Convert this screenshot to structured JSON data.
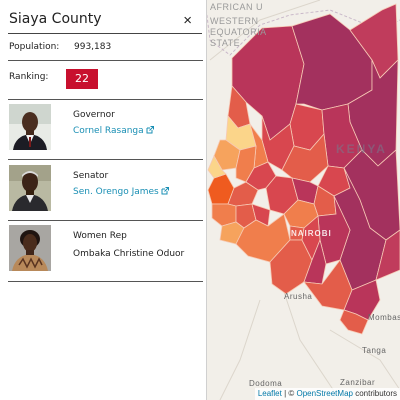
{
  "map": {
    "labels": {
      "african_union": "AFRICAN U",
      "western_1": "WESTERN",
      "western_2": "EQUATORIA",
      "western_3": "STATE",
      "kenya": "KENYA",
      "nairobi": "NAIROBI",
      "arusha": "Arusha",
      "tanga": "Tanga",
      "dodoma": "Dodoma",
      "zanzibar": "Zanzibar",
      "mombasa": "Mombasa"
    },
    "colors": {
      "dark": "#a3315e",
      "deep": "#b9355a",
      "red": "#d8474f",
      "orange_red": "#e35d4a",
      "orange": "#f07e4c",
      "light_orange": "#f6a35d",
      "pale": "#fbd58a",
      "highlight": "#ef5b1f"
    }
  },
  "attribution": {
    "leaflet": "Leaflet",
    "separator": " | © ",
    "osm": "OpenStreetMap",
    "suffix": " contributors"
  },
  "panel": {
    "title": "Siaya County",
    "close": "×",
    "population_label": "Population:",
    "population_value": "993,183",
    "ranking_label": "Ranking:",
    "ranking_value": "22",
    "ranking_color": "#c8102e",
    "link_color": "#1a8fb4",
    "officials": [
      {
        "role": "Governor",
        "name": "Cornel Rasanga",
        "is_link": true
      },
      {
        "role": "Senator",
        "name": "Sen. Orengo James",
        "is_link": true
      },
      {
        "role": "Women Rep",
        "name": "Ombaka Christine Oduor",
        "is_link": false
      }
    ]
  }
}
